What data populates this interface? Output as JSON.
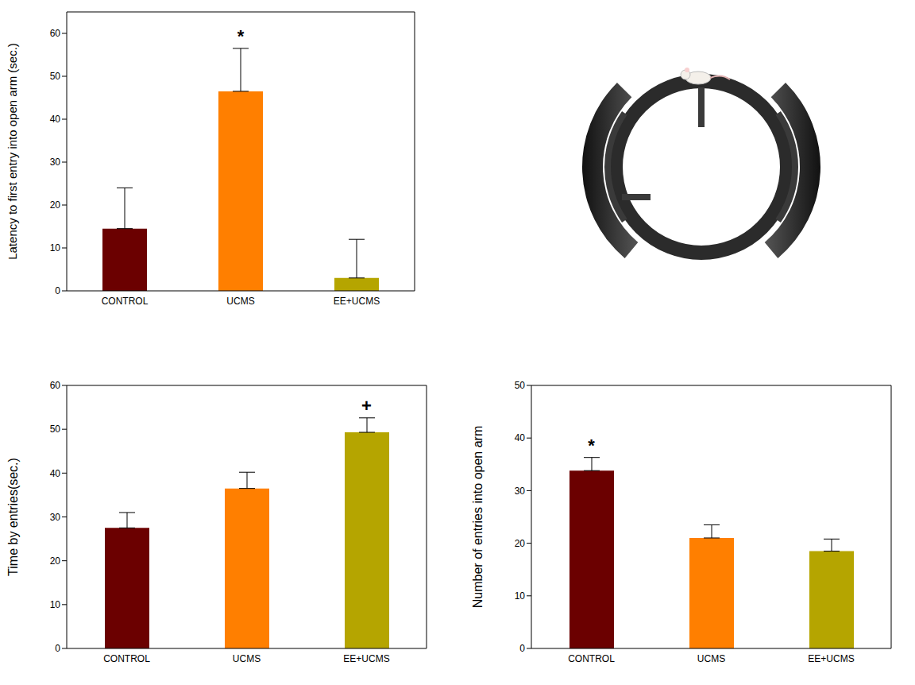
{
  "chart_data": [
    {
      "type": "bar",
      "categories": [
        "CONTROL",
        "UCMS",
        "EE+UCMS"
      ],
      "values": [
        14.5,
        46.5,
        3
      ],
      "errors": [
        9.5,
        10,
        9
      ],
      "colors": [
        "#6b0000",
        "#ff7f00",
        "#b5a500"
      ],
      "y_label": "Latency to first entry into open arm (sec.)",
      "ylim": [
        0,
        65
      ],
      "yticks": [
        0,
        10,
        20,
        30,
        40,
        50,
        60
      ],
      "annotations": [
        {
          "category": "UCMS",
          "text": "*"
        }
      ],
      "grid": false
    },
    {
      "type": "bar",
      "categories": [
        "CONTROL",
        "UCMS",
        "EE+UCMS"
      ],
      "values": [
        27.5,
        36.5,
        49.3
      ],
      "errors": [
        3.5,
        3.7,
        3.3
      ],
      "colors": [
        "#6b0000",
        "#ff7f00",
        "#b5a500"
      ],
      "y_label": "Time by entries(sec.)",
      "ylim": [
        0,
        60
      ],
      "yticks": [
        0,
        10,
        20,
        30,
        40,
        50,
        60
      ],
      "annotations": [
        {
          "category": "EE+UCMS",
          "text": "+"
        }
      ],
      "grid": false
    },
    {
      "type": "bar",
      "categories": [
        "CONTROL",
        "UCMS",
        "EE+UCMS"
      ],
      "values": [
        33.8,
        21,
        18.5
      ],
      "errors": [
        2.5,
        2.5,
        2.3
      ],
      "colors": [
        "#6b0000",
        "#ff7f00",
        "#b5a500"
      ],
      "y_label": "Number of entries into open arm",
      "ylim": [
        0,
        50
      ],
      "yticks": [
        0,
        10,
        20,
        30,
        40,
        50
      ],
      "annotations": [
        {
          "category": "CONTROL",
          "text": "*"
        }
      ],
      "grid": false
    }
  ]
}
